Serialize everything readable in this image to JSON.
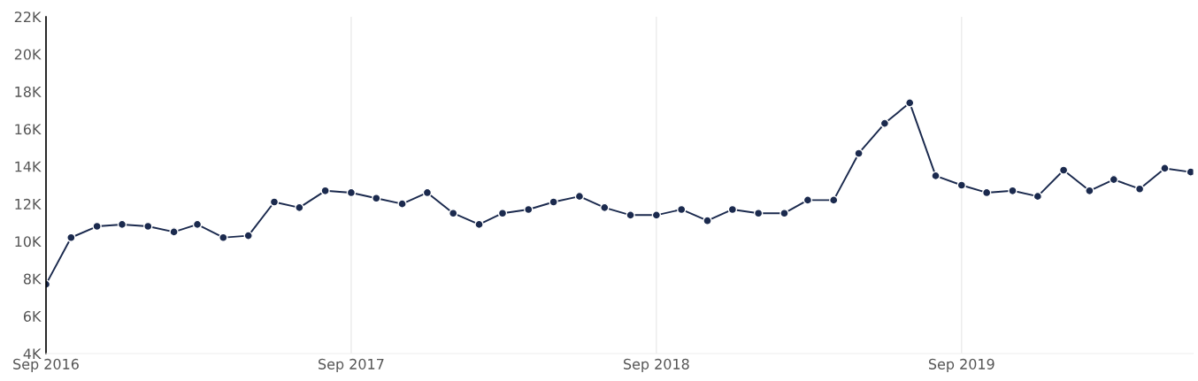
{
  "chart_data": {
    "type": "line",
    "x": [
      "2016-09",
      "2016-10",
      "2016-11",
      "2016-12",
      "2017-01",
      "2017-02",
      "2017-03",
      "2017-04",
      "2017-05",
      "2017-06",
      "2017-07",
      "2017-08",
      "2017-09",
      "2017-10",
      "2017-11",
      "2017-12",
      "2018-01",
      "2018-02",
      "2018-03",
      "2018-04",
      "2018-05",
      "2018-06",
      "2018-07",
      "2018-08",
      "2018-09",
      "2018-10",
      "2018-11",
      "2018-12",
      "2019-01",
      "2019-02",
      "2019-03",
      "2019-04",
      "2019-05",
      "2019-06",
      "2019-07",
      "2019-08",
      "2019-09",
      "2019-10",
      "2019-11",
      "2019-12",
      "2020-01",
      "2020-02",
      "2020-03",
      "2020-04",
      "2020-05",
      "2020-06"
    ],
    "series": [
      {
        "color": "#1b2a4e",
        "values": [
          7700,
          10200,
          10800,
          10900,
          10800,
          10500,
          10900,
          10200,
          10300,
          12100,
          11800,
          12700,
          12600,
          12300,
          12000,
          12600,
          11500,
          10900,
          11500,
          11700,
          12100,
          12400,
          11800,
          11400,
          11400,
          11700,
          11100,
          11700,
          11500,
          11500,
          12200,
          12200,
          14700,
          16300,
          17400,
          13500,
          13000,
          12600,
          12700,
          12400,
          13800,
          12700,
          13300,
          12800,
          13900,
          13700
        ]
      }
    ],
    "xlim": [
      "2016-09",
      "2020-06-04"
    ],
    "xticks": [
      {
        "value": "2016-09",
        "label": "Sep 2016"
      },
      {
        "value": "2017-09",
        "label": "Sep 2017"
      },
      {
        "value": "2018-09",
        "label": "Sep 2018"
      },
      {
        "value": "2019-09",
        "label": "Sep 2019"
      }
    ],
    "ylim": [
      4000,
      22000
    ],
    "yticks": [
      {
        "value": 4000,
        "label": "4K"
      },
      {
        "value": 6000,
        "label": "6K"
      },
      {
        "value": 8000,
        "label": "8K"
      },
      {
        "value": 10000,
        "label": "10K"
      },
      {
        "value": 12000,
        "label": "12K"
      },
      {
        "value": 14000,
        "label": "14K"
      },
      {
        "value": 16000,
        "label": "16K"
      },
      {
        "value": 18000,
        "label": "18K"
      },
      {
        "value": 20000,
        "label": "20K"
      },
      {
        "value": 22000,
        "label": "22K"
      }
    ],
    "grid": "x",
    "marker": "circle",
    "line_style": "solid"
  }
}
